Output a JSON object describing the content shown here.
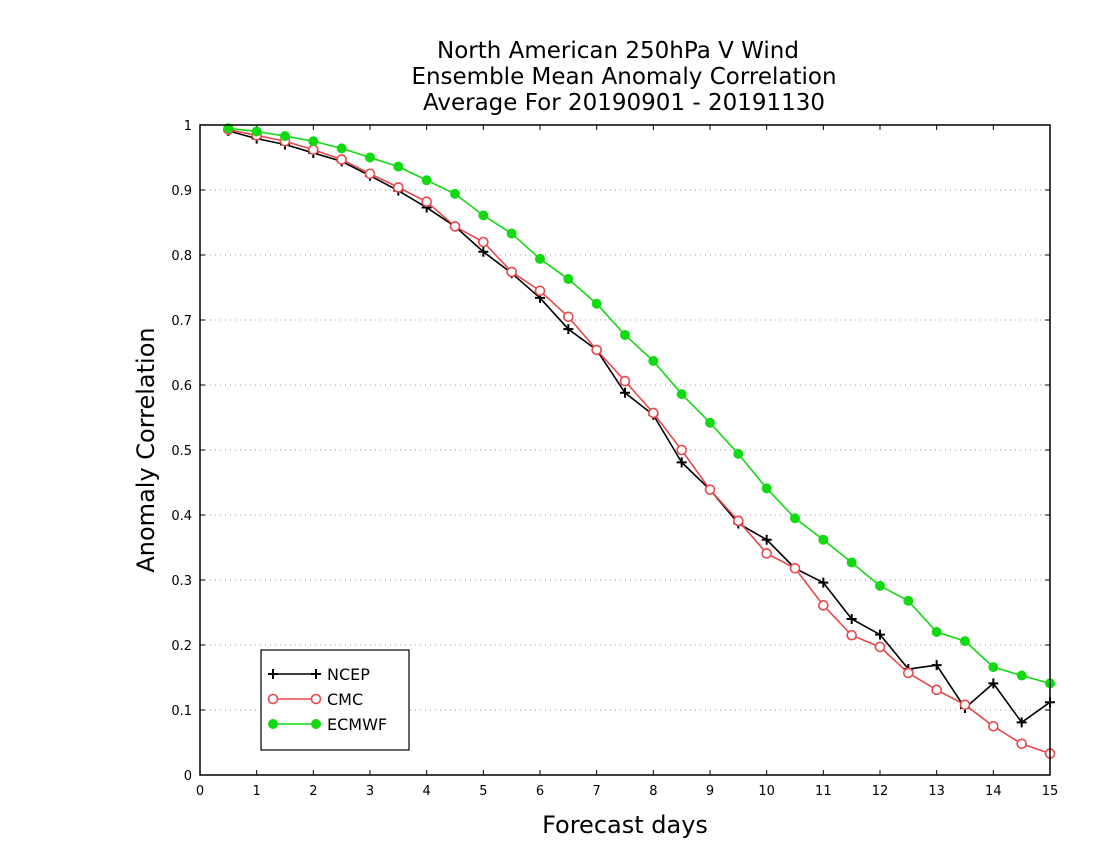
{
  "chart_data": {
    "type": "line",
    "title": [
      "North American 250hPa V Wind",
      "Ensemble Mean Anomaly Correlation",
      "Average For 20190901 - 20191130"
    ],
    "xlabel": "Forecast days",
    "ylabel": "Anomaly Correlation",
    "xlim": [
      0,
      15
    ],
    "ylim": [
      0,
      1
    ],
    "xticks": [
      "0",
      "1",
      "2",
      "3",
      "4",
      "5",
      "6",
      "7",
      "8",
      "9",
      "10",
      "11",
      "12",
      "13",
      "14",
      "15"
    ],
    "yticks": [
      "0",
      "0.1",
      "0.2",
      "0.3",
      "0.4",
      "0.5",
      "0.6",
      "0.7",
      "0.8",
      "0.9",
      "1"
    ],
    "grid": "horizontal dotted",
    "legend_position": "bottom-left",
    "x": [
      0.5,
      1,
      1.5,
      2,
      2.5,
      3,
      3.5,
      4,
      4.5,
      5,
      5.5,
      6,
      6.5,
      7,
      7.5,
      8,
      8.5,
      9,
      9.5,
      10,
      10.5,
      11,
      11.5,
      12,
      12.5,
      13,
      13.5,
      14,
      14.5,
      15
    ],
    "series": [
      {
        "name": "NCEP",
        "color": "#000000",
        "marker": "plus",
        "values": [
          0.991,
          0.979,
          0.97,
          0.957,
          0.944,
          0.922,
          0.899,
          0.873,
          0.844,
          0.805,
          0.772,
          0.734,
          0.686,
          0.654,
          0.588,
          0.554,
          0.481,
          0.439,
          0.387,
          0.362,
          0.318,
          0.296,
          0.24,
          0.216,
          0.163,
          0.169,
          0.103,
          0.141,
          0.081,
          0.112
        ]
      },
      {
        "name": "CMC",
        "color": "#e8474c",
        "marker": "open-circle",
        "values": [
          0.993,
          0.984,
          0.975,
          0.962,
          0.947,
          0.925,
          0.904,
          0.882,
          0.844,
          0.82,
          0.774,
          0.745,
          0.705,
          0.654,
          0.606,
          0.557,
          0.5,
          0.439,
          0.391,
          0.341,
          0.318,
          0.261,
          0.215,
          0.197,
          0.157,
          0.131,
          0.108,
          0.075,
          0.048,
          0.033
        ]
      },
      {
        "name": "ECMWF",
        "color": "#13d913",
        "marker": "filled-circle",
        "values": [
          0.995,
          0.99,
          0.983,
          0.975,
          0.964,
          0.95,
          0.936,
          0.915,
          0.894,
          0.861,
          0.833,
          0.794,
          0.763,
          0.725,
          0.677,
          0.637,
          0.586,
          0.542,
          0.494,
          0.441,
          0.395,
          0.362,
          0.327,
          0.291,
          0.268,
          0.22,
          0.206,
          0.166,
          0.153,
          0.141
        ]
      }
    ]
  }
}
